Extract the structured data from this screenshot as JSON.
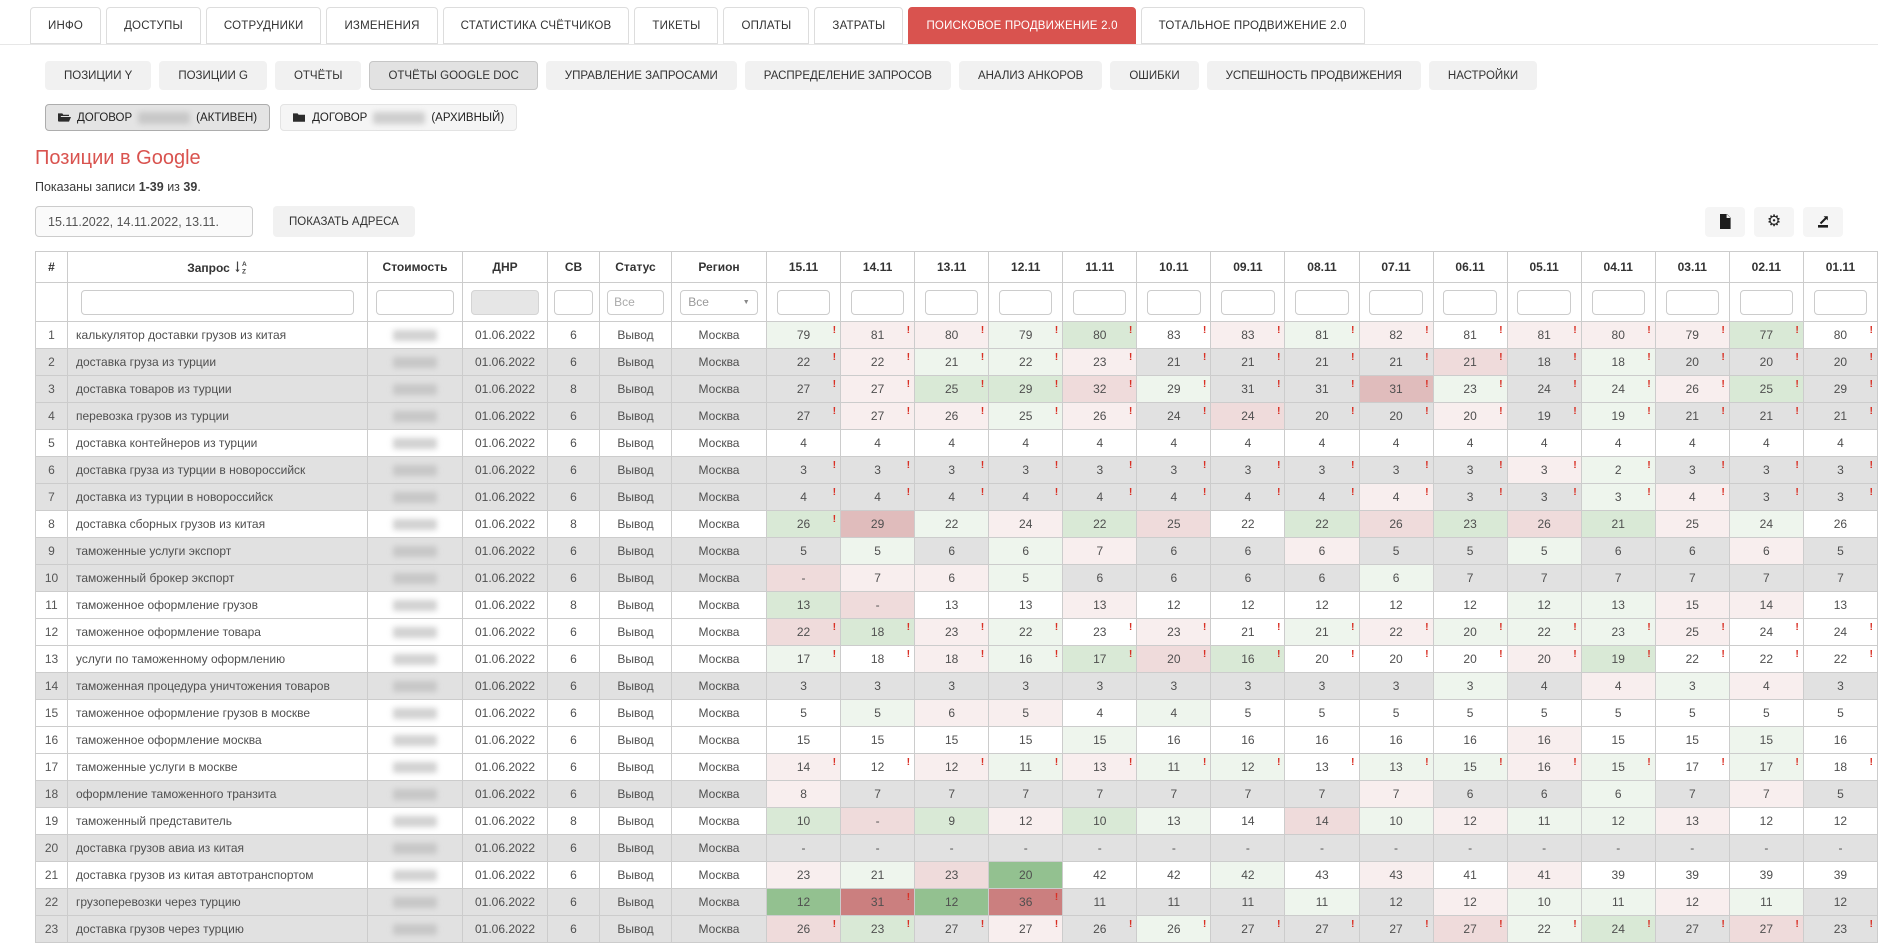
{
  "colors": {
    "accent": "#d9534f",
    "shaded_row": "#e1e1e1",
    "excl_mark": "#d93025",
    "tint_green": [
      "#eef5ed",
      "#d9e9d6",
      "#bcd8b8",
      "#93c190"
    ],
    "tint_red": [
      "#f8eeee",
      "#efdbdb",
      "#e0bcbc",
      "#cb7f7f"
    ]
  },
  "top_tabs": {
    "items": [
      "ИНФО",
      "ДОСТУПЫ",
      "СОТРУДНИКИ",
      "ИЗМЕНЕНИЯ",
      "СТАТИСТИКА СЧЁТЧИКОВ",
      "ТИКЕТЫ",
      "ОПЛАТЫ",
      "ЗАТРАТЫ",
      "ПОИСКОВОЕ ПРОДВИЖЕНИЕ 2.0",
      "ТОТАЛЬНОЕ ПРОДВИЖЕНИЕ 2.0"
    ],
    "active_index": 8
  },
  "sub_tabs": {
    "items": [
      "ПОЗИЦИИ Y",
      "ПОЗИЦИИ G",
      "ОТЧЁТЫ",
      "ОТЧЁТЫ GOOGLE DOC",
      "УПРАВЛЕНИЕ ЗАПРОСАМИ",
      "РАСПРЕДЕЛЕНИЕ ЗАПРОСОВ",
      "АНАЛИЗ АНКОРОВ",
      "ОШИБКИ",
      "УСПЕШНОСТЬ ПРОДВИЖЕНИЯ",
      "НАСТРОЙКИ"
    ],
    "active_index": 3
  },
  "contracts": [
    {
      "prefix": "ДОГОВОР",
      "number_redacted": true,
      "status": "(АКТИВЕН)",
      "active": true,
      "icon": "folder-open-icon"
    },
    {
      "prefix": "ДОГОВОР",
      "number_redacted": true,
      "status": "(АРХИВНЫЙ)",
      "active": false,
      "icon": "folder-icon"
    }
  ],
  "heading": "Позиции в Google",
  "records_summary": {
    "prefix": "Показаны записи",
    "range": "1-39",
    "of_word": "из",
    "total": "39",
    "dot": "."
  },
  "controls": {
    "dates_value": "15.11.2022, 14.11.2022, 13.11.",
    "show_addresses_label": "ПОКАЗАТЬ АДРЕСА",
    "toolbar_icons": [
      "report-file-icon",
      "settings-gear-icon",
      "export-icon"
    ]
  },
  "table": {
    "columns": [
      "#",
      "Запрос",
      "Стоимость",
      "ДНР",
      "СВ",
      "Статус",
      "Регион"
    ],
    "date_columns": [
      "15.11",
      "14.11",
      "13.11",
      "12.11",
      "11.11",
      "10.11",
      "09.11",
      "08.11",
      "07.11",
      "06.11",
      "05.11",
      "04.11",
      "03.11",
      "02.11",
      "01.11"
    ],
    "filter": {
      "status_placeholder": "Все",
      "region_selected": "Все"
    },
    "rows": [
      {
        "n": "1",
        "query": "калькулятор доставки грузов из китая",
        "dnr": "01.06.2022",
        "sv": "6",
        "status": "Вывод",
        "region": "Москва",
        "shaded": false,
        "excl": "all",
        "values": [
          "79",
          "81",
          "80",
          "79",
          "80",
          "83",
          "83",
          "81",
          "82",
          "81",
          "81",
          "80",
          "79",
          "77",
          "80"
        ]
      },
      {
        "n": "2",
        "query": "доставка груза из турции",
        "dnr": "01.06.2022",
        "sv": "6",
        "status": "Вывод",
        "region": "Москва",
        "shaded": true,
        "excl": "all",
        "values": [
          "22",
          "22",
          "21",
          "22",
          "23",
          "21",
          "21",
          "21",
          "21",
          "21",
          "18",
          "18",
          "20",
          "20",
          "20"
        ]
      },
      {
        "n": "3",
        "query": "доставка товаров из турции",
        "dnr": "01.06.2022",
        "sv": "8",
        "status": "Вывод",
        "region": "Москва",
        "shaded": true,
        "excl": "all",
        "values": [
          "27",
          "27",
          "25",
          "29",
          "32",
          "29",
          "31",
          "31",
          "31",
          "23",
          "24",
          "24",
          "26",
          "25",
          "29"
        ]
      },
      {
        "n": "4",
        "query": "перевозка грузов из турции",
        "dnr": "01.06.2022",
        "sv": "6",
        "status": "Вывод",
        "region": "Москва",
        "shaded": true,
        "excl": "all",
        "values": [
          "27",
          "27",
          "26",
          "25",
          "26",
          "24",
          "24",
          "20",
          "20",
          "20",
          "19",
          "19",
          "21",
          "21",
          "21"
        ]
      },
      {
        "n": "5",
        "query": "доставка контейнеров из турции",
        "dnr": "01.06.2022",
        "sv": "6",
        "status": "Вывод",
        "region": "Москва",
        "shaded": false,
        "excl": [],
        "values": [
          "4",
          "4",
          "4",
          "4",
          "4",
          "4",
          "4",
          "4",
          "4",
          "4",
          "4",
          "4",
          "4",
          "4",
          "4"
        ]
      },
      {
        "n": "6",
        "query": "доставка груза из турции в новороссийск",
        "dnr": "01.06.2022",
        "sv": "6",
        "status": "Вывод",
        "region": "Москва",
        "shaded": true,
        "excl": "all",
        "values": [
          "3",
          "3",
          "3",
          "3",
          "3",
          "3",
          "3",
          "3",
          "3",
          "3",
          "3",
          "2",
          "3",
          "3",
          "3"
        ]
      },
      {
        "n": "7",
        "query": "доставка из турции в новороссийск",
        "dnr": "01.06.2022",
        "sv": "6",
        "status": "Вывод",
        "region": "Москва",
        "shaded": true,
        "excl": "all",
        "values": [
          "4",
          "4",
          "4",
          "4",
          "4",
          "4",
          "4",
          "4",
          "4",
          "3",
          "3",
          "3",
          "4",
          "3",
          "3"
        ]
      },
      {
        "n": "8",
        "query": "доставка сборных грузов из китая",
        "dnr": "01.06.2022",
        "sv": "8",
        "status": "Вывод",
        "region": "Москва",
        "shaded": false,
        "excl": [
          0
        ],
        "values": [
          "26",
          "29",
          "22",
          "24",
          "22",
          "25",
          "22",
          "22",
          "26",
          "23",
          "26",
          "21",
          "25",
          "24",
          "26"
        ]
      },
      {
        "n": "9",
        "query": "таможенные услуги экспорт",
        "dnr": "01.06.2022",
        "sv": "6",
        "status": "Вывод",
        "region": "Москва",
        "shaded": true,
        "excl": [],
        "values": [
          "5",
          "5",
          "6",
          "6",
          "7",
          "6",
          "6",
          "6",
          "5",
          "5",
          "5",
          "6",
          "6",
          "6",
          "5"
        ]
      },
      {
        "n": "10",
        "query": "таможенный брокер экспорт",
        "dnr": "01.06.2022",
        "sv": "6",
        "status": "Вывод",
        "region": "Москва",
        "shaded": true,
        "excl": [],
        "values": [
          "-",
          "7",
          "6",
          "5",
          "6",
          "6",
          "6",
          "6",
          "6",
          "7",
          "7",
          "7",
          "7",
          "7",
          "7"
        ]
      },
      {
        "n": "11",
        "query": "таможенное оформление грузов",
        "dnr": "01.06.2022",
        "sv": "8",
        "status": "Вывод",
        "region": "Москва",
        "shaded": false,
        "excl": [],
        "values": [
          "13",
          "-",
          "13",
          "13",
          "13",
          "12",
          "12",
          "12",
          "12",
          "12",
          "12",
          "13",
          "15",
          "14",
          "13"
        ]
      },
      {
        "n": "12",
        "query": "таможенное оформление товара",
        "dnr": "01.06.2022",
        "sv": "6",
        "status": "Вывод",
        "region": "Москва",
        "shaded": false,
        "excl": "all",
        "values": [
          "22",
          "18",
          "23",
          "22",
          "23",
          "23",
          "21",
          "21",
          "22",
          "20",
          "22",
          "23",
          "25",
          "24",
          "24"
        ]
      },
      {
        "n": "13",
        "query": "услуги по таможенному оформлению",
        "dnr": "01.06.2022",
        "sv": "6",
        "status": "Вывод",
        "region": "Москва",
        "shaded": false,
        "excl": "all",
        "values": [
          "17",
          "18",
          "18",
          "16",
          "17",
          "20",
          "16",
          "20",
          "20",
          "20",
          "20",
          "19",
          "22",
          "22",
          "22"
        ]
      },
      {
        "n": "14",
        "query": "таможенная процедура уничтожения товаров",
        "dnr": "01.06.2022",
        "sv": "6",
        "status": "Вывод",
        "region": "Москва",
        "shaded": true,
        "excl": [],
        "values": [
          "3",
          "3",
          "3",
          "3",
          "3",
          "3",
          "3",
          "3",
          "3",
          "3",
          "4",
          "4",
          "3",
          "4",
          "3"
        ]
      },
      {
        "n": "15",
        "query": "таможенное оформление грузов в москве",
        "dnr": "01.06.2022",
        "sv": "6",
        "status": "Вывод",
        "region": "Москва",
        "shaded": false,
        "excl": [],
        "values": [
          "5",
          "5",
          "6",
          "5",
          "4",
          "4",
          "5",
          "5",
          "5",
          "5",
          "5",
          "5",
          "5",
          "5",
          "5"
        ]
      },
      {
        "n": "16",
        "query": "таможенное оформление москва",
        "dnr": "01.06.2022",
        "sv": "6",
        "status": "Вывод",
        "region": "Москва",
        "shaded": false,
        "excl": [],
        "values": [
          "15",
          "15",
          "15",
          "15",
          "15",
          "16",
          "16",
          "16",
          "16",
          "16",
          "16",
          "15",
          "15",
          "15",
          "16"
        ]
      },
      {
        "n": "17",
        "query": "таможенные услуги в москве",
        "dnr": "01.06.2022",
        "sv": "6",
        "status": "Вывод",
        "region": "Москва",
        "shaded": false,
        "excl": "all",
        "values": [
          "14",
          "12",
          "12",
          "11",
          "13",
          "11",
          "12",
          "13",
          "13",
          "15",
          "16",
          "15",
          "17",
          "17",
          "18"
        ]
      },
      {
        "n": "18",
        "query": "оформление таможенного транзита",
        "dnr": "01.06.2022",
        "sv": "6",
        "status": "Вывод",
        "region": "Москва",
        "shaded": true,
        "excl": [],
        "values": [
          "8",
          "7",
          "7",
          "7",
          "7",
          "7",
          "7",
          "7",
          "7",
          "6",
          "6",
          "6",
          "7",
          "7",
          "5"
        ]
      },
      {
        "n": "19",
        "query": "таможенный представитель",
        "dnr": "01.06.2022",
        "sv": "8",
        "status": "Вывод",
        "region": "Москва",
        "shaded": false,
        "excl": [],
        "values": [
          "10",
          "-",
          "9",
          "12",
          "10",
          "13",
          "14",
          "14",
          "10",
          "12",
          "11",
          "12",
          "13",
          "12",
          "12"
        ]
      },
      {
        "n": "20",
        "query": "доставка грузов авиа из китая",
        "dnr": "01.06.2022",
        "sv": "6",
        "status": "Вывод",
        "region": "Москва",
        "shaded": true,
        "excl": [],
        "values": [
          "-",
          "-",
          "-",
          "-",
          "-",
          "-",
          "-",
          "-",
          "-",
          "-",
          "-",
          "-",
          "-",
          "-",
          "-"
        ]
      },
      {
        "n": "21",
        "query": "доставка грузов из китая автотранспортом",
        "dnr": "01.06.2022",
        "sv": "6",
        "status": "Вывод",
        "region": "Москва",
        "shaded": false,
        "excl": [],
        "values": [
          "23",
          "21",
          "23",
          "20",
          "42",
          "42",
          "42",
          "43",
          "43",
          "41",
          "41",
          "39",
          "39",
          "39",
          "39"
        ]
      },
      {
        "n": "22",
        "query": "грузоперевозки через турцию",
        "dnr": "01.06.2022",
        "sv": "6",
        "status": "Вывод",
        "region": "Москва",
        "shaded": true,
        "excl": [
          1,
          3
        ],
        "values": [
          "12",
          "31",
          "12",
          "36",
          "11",
          "11",
          "11",
          "11",
          "12",
          "12",
          "10",
          "11",
          "12",
          "11",
          "12"
        ]
      },
      {
        "n": "23",
        "query": "доставка грузов через турцию",
        "dnr": "01.06.2022",
        "sv": "6",
        "status": "Вывод",
        "region": "Москва",
        "shaded": true,
        "excl": "all",
        "values": [
          "26",
          "23",
          "27",
          "27",
          "26",
          "26",
          "27",
          "27",
          "27",
          "27",
          "22",
          "24",
          "27",
          "27",
          "23"
        ]
      }
    ]
  }
}
